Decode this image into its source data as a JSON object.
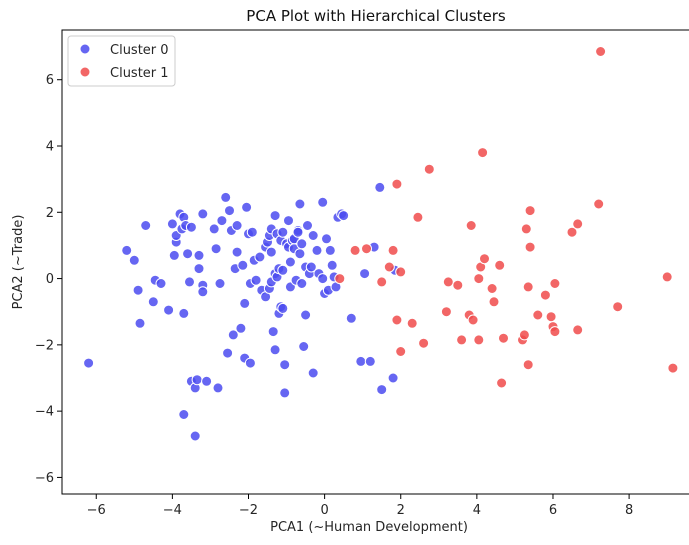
{
  "chart_data": {
    "type": "scatter",
    "title": "PCA Plot with Hierarchical Clusters",
    "xlabel": "PCA1 (~Human Development)",
    "ylabel": "PCA2 (~Trade)",
    "xlim": [
      -6.9,
      9.6
    ],
    "ylim": [
      -6.5,
      7.5
    ],
    "xticks": [
      -6,
      -4,
      -2,
      0,
      2,
      4,
      6,
      8
    ],
    "yticks": [
      -6,
      -4,
      -2,
      0,
      2,
      4,
      6
    ],
    "grid": false,
    "legend_position": "top-left",
    "series": [
      {
        "name": "Cluster 0",
        "color": "#4b4bf0",
        "points": [
          [
            -6.2,
            -2.55
          ],
          [
            -5.2,
            0.85
          ],
          [
            -5.0,
            0.55
          ],
          [
            -4.9,
            -0.35
          ],
          [
            -4.85,
            -1.35
          ],
          [
            -4.7,
            1.6
          ],
          [
            -4.5,
            -0.7
          ],
          [
            -4.45,
            -0.05
          ],
          [
            -4.3,
            -0.15
          ],
          [
            -4.1,
            -0.95
          ],
          [
            -4.0,
            1.65
          ],
          [
            -3.95,
            0.7
          ],
          [
            -3.9,
            1.1
          ],
          [
            -3.9,
            1.3
          ],
          [
            -3.8,
            1.95
          ],
          [
            -3.75,
            1.5
          ],
          [
            -3.7,
            1.85
          ],
          [
            -3.7,
            -1.05
          ],
          [
            -3.7,
            -4.1
          ],
          [
            -3.65,
            1.6
          ],
          [
            -3.6,
            0.75
          ],
          [
            -3.55,
            -0.1
          ],
          [
            -3.5,
            -3.1
          ],
          [
            -3.5,
            1.55
          ],
          [
            -3.4,
            -3.3
          ],
          [
            -3.35,
            -3.05
          ],
          [
            -3.4,
            -4.75
          ],
          [
            -3.3,
            0.7
          ],
          [
            -3.3,
            0.3
          ],
          [
            -3.2,
            -0.2
          ],
          [
            -3.2,
            -0.4
          ],
          [
            -3.2,
            1.95
          ],
          [
            -3.1,
            -3.1
          ],
          [
            -2.9,
            1.5
          ],
          [
            -2.85,
            0.9
          ],
          [
            -2.8,
            -3.3
          ],
          [
            -2.75,
            -0.15
          ],
          [
            -2.7,
            1.75
          ],
          [
            -2.6,
            2.45
          ],
          [
            -2.55,
            -2.25
          ],
          [
            -2.5,
            2.05
          ],
          [
            -2.45,
            1.45
          ],
          [
            -2.4,
            -1.7
          ],
          [
            -2.35,
            0.3
          ],
          [
            -2.3,
            0.8
          ],
          [
            -2.3,
            1.6
          ],
          [
            -2.2,
            -1.5
          ],
          [
            -2.15,
            0.4
          ],
          [
            -2.1,
            -0.75
          ],
          [
            -2.1,
            -2.4
          ],
          [
            -2.05,
            2.15
          ],
          [
            -2.0,
            1.35
          ],
          [
            -1.95,
            -0.15
          ],
          [
            -1.95,
            -2.55
          ],
          [
            -1.9,
            1.4
          ],
          [
            -1.85,
            0.55
          ],
          [
            -1.8,
            -0.05
          ],
          [
            -1.7,
            0.65
          ],
          [
            -1.65,
            -0.35
          ],
          [
            -1.55,
            0.95
          ],
          [
            -1.55,
            -0.55
          ],
          [
            -1.5,
            1.1
          ],
          [
            -1.45,
            1.3
          ],
          [
            -1.45,
            -0.3
          ],
          [
            -1.4,
            0.8
          ],
          [
            -1.4,
            -0.1
          ],
          [
            -1.4,
            1.5
          ],
          [
            -1.35,
            -1.6
          ],
          [
            -1.3,
            -2.15
          ],
          [
            -1.3,
            1.9
          ],
          [
            -1.3,
            0.15
          ],
          [
            -1.25,
            1.35
          ],
          [
            -1.25,
            0.05
          ],
          [
            -1.2,
            0.3
          ],
          [
            -1.2,
            -1.05
          ],
          [
            -1.15,
            1.15
          ],
          [
            -1.15,
            -0.85
          ],
          [
            -1.1,
            1.4
          ],
          [
            -1.1,
            0.25
          ],
          [
            -1.1,
            -0.9
          ],
          [
            -1.05,
            -2.6
          ],
          [
            -1.05,
            -3.45
          ],
          [
            -1.0,
            1.05
          ],
          [
            -0.95,
            0.95
          ],
          [
            -0.95,
            1.75
          ],
          [
            -0.9,
            0.5
          ],
          [
            -0.9,
            -0.25
          ],
          [
            -0.85,
            1.15
          ],
          [
            -0.8,
            0.9
          ],
          [
            -0.8,
            1.2
          ],
          [
            -0.75,
            -0.05
          ],
          [
            -0.7,
            1.45
          ],
          [
            -0.7,
            1.4
          ],
          [
            -0.65,
            2.25
          ],
          [
            -0.65,
            0.75
          ],
          [
            -0.6,
            -0.15
          ],
          [
            -0.6,
            1.05
          ],
          [
            -0.55,
            -2.05
          ],
          [
            -0.5,
            0.35
          ],
          [
            -0.5,
            -1.1
          ],
          [
            -0.45,
            1.6
          ],
          [
            -0.4,
            0.15
          ],
          [
            -0.35,
            0.35
          ],
          [
            -0.3,
            -2.85
          ],
          [
            -0.3,
            1.3
          ],
          [
            -0.2,
            0.85
          ],
          [
            -0.15,
            0.15
          ],
          [
            -0.05,
            2.3
          ],
          [
            -0.05,
            0.0
          ],
          [
            0.0,
            -0.45
          ],
          [
            0.05,
            1.2
          ],
          [
            0.1,
            -0.35
          ],
          [
            0.15,
            0.85
          ],
          [
            0.2,
            0.4
          ],
          [
            0.25,
            0.05
          ],
          [
            0.3,
            -0.25
          ],
          [
            0.35,
            1.85
          ],
          [
            0.45,
            1.95
          ],
          [
            0.5,
            1.9
          ],
          [
            0.7,
            -1.2
          ],
          [
            0.95,
            -2.5
          ],
          [
            1.05,
            0.15
          ],
          [
            1.2,
            -2.5
          ],
          [
            1.3,
            0.95
          ],
          [
            1.45,
            2.75
          ],
          [
            1.5,
            -3.35
          ],
          [
            1.8,
            -3.0
          ],
          [
            1.85,
            0.25
          ]
        ]
      },
      {
        "name": "Cluster 1",
        "color": "#f04b4b",
        "points": [
          [
            0.4,
            0.0
          ],
          [
            0.8,
            0.85
          ],
          [
            1.1,
            0.9
          ],
          [
            1.5,
            -0.1
          ],
          [
            1.7,
            0.35
          ],
          [
            1.8,
            0.85
          ],
          [
            1.9,
            2.85
          ],
          [
            1.9,
            -1.25
          ],
          [
            2.0,
            -2.2
          ],
          [
            2.0,
            0.2
          ],
          [
            2.3,
            -1.35
          ],
          [
            2.45,
            1.85
          ],
          [
            2.6,
            -1.95
          ],
          [
            2.75,
            3.3
          ],
          [
            3.2,
            -1.0
          ],
          [
            3.25,
            -0.1
          ],
          [
            3.5,
            -0.2
          ],
          [
            3.6,
            -1.85
          ],
          [
            3.8,
            -1.1
          ],
          [
            3.85,
            1.6
          ],
          [
            3.9,
            -1.25
          ],
          [
            4.05,
            0.0
          ],
          [
            4.05,
            -1.85
          ],
          [
            4.1,
            0.35
          ],
          [
            4.15,
            3.8
          ],
          [
            4.2,
            0.6
          ],
          [
            4.4,
            -0.3
          ],
          [
            4.45,
            -0.7
          ],
          [
            4.6,
            0.4
          ],
          [
            4.65,
            -3.15
          ],
          [
            4.7,
            -1.8
          ],
          [
            5.2,
            -1.85
          ],
          [
            5.25,
            -1.7
          ],
          [
            5.3,
            1.5
          ],
          [
            5.35,
            -2.6
          ],
          [
            5.35,
            -0.25
          ],
          [
            5.4,
            2.05
          ],
          [
            5.4,
            0.95
          ],
          [
            5.6,
            -1.1
          ],
          [
            5.8,
            -0.5
          ],
          [
            5.95,
            -1.15
          ],
          [
            6.0,
            -1.45
          ],
          [
            6.05,
            -0.15
          ],
          [
            6.05,
            -1.6
          ],
          [
            6.5,
            1.4
          ],
          [
            6.65,
            1.65
          ],
          [
            6.65,
            -1.55
          ],
          [
            7.2,
            2.25
          ],
          [
            7.25,
            6.85
          ],
          [
            7.7,
            -0.85
          ],
          [
            9.0,
            0.05
          ],
          [
            9.15,
            -2.7
          ]
        ]
      }
    ]
  }
}
